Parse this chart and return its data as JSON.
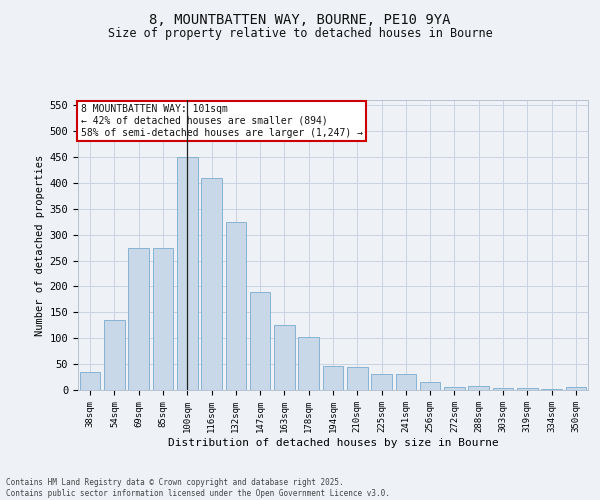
{
  "title_line1": "8, MOUNTBATTEN WAY, BOURNE, PE10 9YA",
  "title_line2": "Size of property relative to detached houses in Bourne",
  "xlabel": "Distribution of detached houses by size in Bourne",
  "ylabel": "Number of detached properties",
  "categories": [
    "38sqm",
    "54sqm",
    "69sqm",
    "85sqm",
    "100sqm",
    "116sqm",
    "132sqm",
    "147sqm",
    "163sqm",
    "178sqm",
    "194sqm",
    "210sqm",
    "225sqm",
    "241sqm",
    "256sqm",
    "272sqm",
    "288sqm",
    "303sqm",
    "319sqm",
    "334sqm",
    "350sqm"
  ],
  "values": [
    35,
    135,
    275,
    275,
    450,
    410,
    325,
    190,
    125,
    102,
    46,
    45,
    31,
    31,
    16,
    5,
    7,
    3,
    3,
    1,
    5
  ],
  "bar_color": "#c8d8e8",
  "bar_edge_color": "#7aabcf",
  "marker_bar_index": 4,
  "annotation_line1": "8 MOUNTBATTEN WAY: 101sqm",
  "annotation_line2": "← 42% of detached houses are smaller (894)",
  "annotation_line3": "58% of semi-detached houses are larger (1,247) →",
  "annotation_box_color": "#ffffff",
  "annotation_box_edgecolor": "#cc0000",
  "marker_line_color": "#222222",
  "ylim": [
    0,
    560
  ],
  "yticks": [
    0,
    50,
    100,
    150,
    200,
    250,
    300,
    350,
    400,
    450,
    500,
    550
  ],
  "grid_color": "#c8d4e0",
  "bg_color": "#eef2f7",
  "footer_line1": "Contains HM Land Registry data © Crown copyright and database right 2025.",
  "footer_line2": "Contains public sector information licensed under the Open Government Licence v3.0."
}
